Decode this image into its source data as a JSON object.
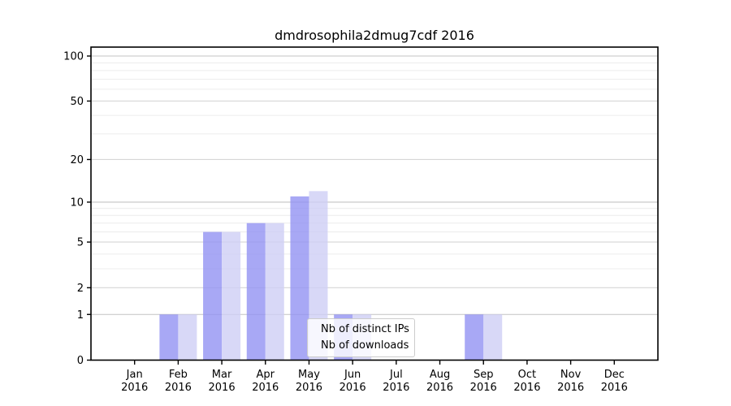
{
  "chart_data": {
    "type": "bar",
    "title": "dmdrosophila2dmug7cdf 2016",
    "categories": [
      "Jan",
      "Feb",
      "Mar",
      "Apr",
      "May",
      "Jun",
      "Jul",
      "Aug",
      "Sep",
      "Oct",
      "Nov",
      "Dec"
    ],
    "year_label": "2016",
    "series": [
      {
        "name": "Nb of distinct IPs",
        "color": "#9292f2",
        "opacity": 0.8,
        "values": [
          0,
          1,
          6,
          7,
          11,
          1,
          0,
          0,
          1,
          0,
          0,
          0
        ]
      },
      {
        "name": "Nb of downloads",
        "color": "#cecef5",
        "opacity": 0.8,
        "values": [
          0,
          1,
          6,
          7,
          12,
          1,
          0,
          0,
          1,
          0,
          0,
          0
        ]
      }
    ],
    "y_axis": {
      "scale": "log10(1+y)",
      "ticks": [
        0,
        1,
        2,
        5,
        10,
        20,
        50,
        100
      ],
      "emphasized_gridlines": [
        1,
        10,
        100
      ],
      "minor_gridlines": [
        3,
        4,
        6,
        7,
        8,
        9,
        30,
        40,
        60,
        70,
        80,
        90
      ],
      "max": 100
    },
    "grid": true,
    "legend_position": "lower-center"
  },
  "colors": {
    "background": "#ffffff",
    "axis": "#000000",
    "text": "#000000",
    "major_grid": "#d6d6d6",
    "emphasized_grid": "#c3c3c3",
    "minor_grid": "#ececec"
  }
}
